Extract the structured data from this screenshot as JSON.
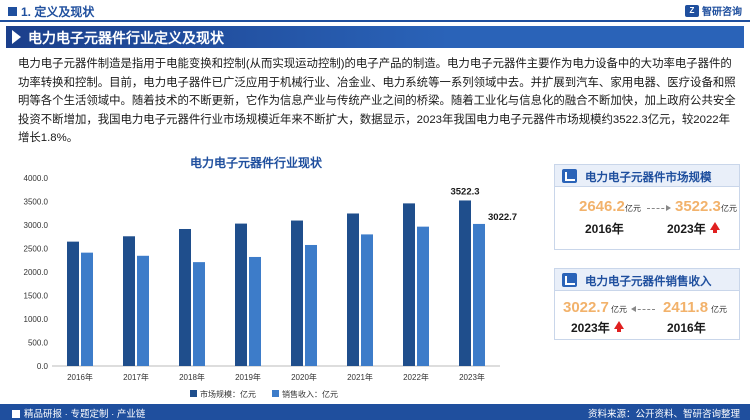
{
  "header": {
    "section_title": "1. 定义及现状",
    "logo_text": "智研咨询"
  },
  "banner": {
    "title": "电力电子元器件行业定义及现状"
  },
  "paragraph": "电力电子元器件制造是指用于电能变换和控制(从而实现运动控制)的电子产品的制造。电力电子元器件主要作为电力设备中的大功率电子器件的功率转换和控制。目前，电力电子器件已广泛应用于机械行业、冶金业、电力系统等一系列领域中去。并扩展到汽车、家用电器、医疗设备和照明等各个生活领域中。随着技术的不断更新，它作为信息产业与传统产业之间的桥梁。随着工业化与信息化的融合不断加快，加上政府公共安全投资不断增加，我国电力电子元器件行业市场规模近年来不断扩大，数据显示，2023年我国电力电子元器件市场规模约3522.3亿元，较2022年增长1.8%。",
  "chart_data": {
    "type": "bar",
    "title": "电力电子元器件行业现状",
    "categories": [
      "2016年",
      "2017年",
      "2018年",
      "2019年",
      "2020年",
      "2021年",
      "2022年",
      "2023年"
    ],
    "series": [
      {
        "name": "市场规模：亿元",
        "color": "#1f4e8c",
        "values": [
          2646.2,
          2760,
          2915,
          3030,
          3095,
          3245,
          3460,
          3522.3
        ]
      },
      {
        "name": "销售收入：亿元",
        "color": "#3d7cc9",
        "values": [
          2411.8,
          2345,
          2210,
          2320,
          2575,
          2800,
          2965,
          3022.7
        ]
      }
    ],
    "ylim": [
      0,
      4000
    ],
    "yticks": [
      "0.0",
      "500.0",
      "1000.0",
      "1500.0",
      "2000.0",
      "2500.0",
      "3000.0",
      "3500.0",
      "4000.0"
    ],
    "data_labels": {
      "market_2023": "3522.3",
      "revenue_2023": "3022.7"
    },
    "grid": false,
    "legend": "bottom"
  },
  "panels": {
    "market": {
      "title": "电力电子元器件市场规模",
      "left_value": "2646.2",
      "left_unit": "亿元",
      "left_year": "2016年",
      "right_value": "3522.3",
      "right_unit": "亿元",
      "right_year": "2023年"
    },
    "revenue": {
      "title": "电力电子元器件销售收入",
      "left_value": "3022.7",
      "left_unit": "亿元",
      "left_year": "2023年",
      "right_value": "2411.8",
      "right_unit": "亿元",
      "right_year": "2016年"
    }
  },
  "footer": {
    "left": "精品研报 · 专题定制 · 产业链",
    "right": "资料来源：公开资料、智研咨询整理"
  }
}
